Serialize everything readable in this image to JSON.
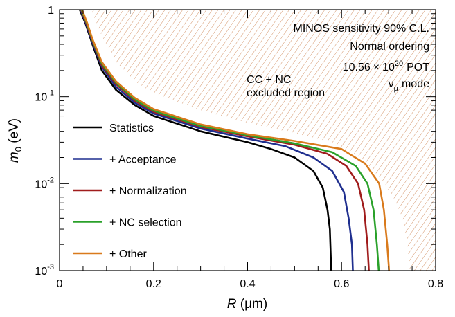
{
  "chart_data": {
    "type": "line",
    "x_scale": "linear",
    "y_scale": "log",
    "xlim": [
      0,
      0.8
    ],
    "ylim": [
      0.001,
      1
    ],
    "xlabel": {
      "var": "R",
      "unit": " (μm)"
    },
    "ylabel": {
      "var": "m",
      "sub": "0",
      "unit": " (eV)"
    },
    "x_ticks": [
      "0",
      "0.2",
      "0.4",
      "0.6",
      "0.8"
    ],
    "y_ticks": [
      {
        "value": 1,
        "base": "1",
        "exp": ""
      },
      {
        "value": 0.1,
        "base": "10",
        "exp": "-1"
      },
      {
        "value": 0.01,
        "base": "10",
        "exp": "-2"
      },
      {
        "value": 0.001,
        "base": "10",
        "exp": "-3"
      }
    ],
    "annotations": {
      "sensitivity": "MINOS sensitivity 90% C.L.",
      "ordering": "Normal ordering",
      "pot_mantissa": "10.56",
      "pot_times": "×",
      "pot_base": "10",
      "pot_exp": "20",
      "pot_unit": "POT",
      "mode_nu": "ν",
      "mode_sub": "μ",
      "mode_text": "mode",
      "region_line1": "CC + NC",
      "region_line2": "excluded region"
    },
    "excluded_region": {
      "color": "#d4956a",
      "boundary": [
        [
          0.067,
          1
        ],
        [
          0.09,
          0.5
        ],
        [
          0.12,
          0.25
        ],
        [
          0.16,
          0.15
        ],
        [
          0.2,
          0.11
        ],
        [
          0.3,
          0.07
        ],
        [
          0.4,
          0.05
        ],
        [
          0.5,
          0.038
        ],
        [
          0.58,
          0.03
        ],
        [
          0.64,
          0.02
        ],
        [
          0.68,
          0.012
        ],
        [
          0.71,
          0.007
        ],
        [
          0.73,
          0.004
        ],
        [
          0.74,
          0.002
        ],
        [
          0.745,
          0.001
        ]
      ]
    },
    "series": [
      {
        "name": "Statistics",
        "color": "#000000",
        "points": [
          [
            0.043,
            1
          ],
          [
            0.055,
            0.7
          ],
          [
            0.07,
            0.4
          ],
          [
            0.09,
            0.2
          ],
          [
            0.12,
            0.12
          ],
          [
            0.16,
            0.08
          ],
          [
            0.2,
            0.06
          ],
          [
            0.3,
            0.04
          ],
          [
            0.4,
            0.03
          ],
          [
            0.45,
            0.025
          ],
          [
            0.5,
            0.02
          ],
          [
            0.54,
            0.014
          ],
          [
            0.56,
            0.009
          ],
          [
            0.57,
            0.005
          ],
          [
            0.575,
            0.003
          ],
          [
            0.578,
            0.001
          ]
        ]
      },
      {
        "name": "+ Acceptance",
        "color": "#1f2f8f",
        "points": [
          [
            0.045,
            1
          ],
          [
            0.056,
            0.7
          ],
          [
            0.07,
            0.42
          ],
          [
            0.09,
            0.22
          ],
          [
            0.12,
            0.13
          ],
          [
            0.16,
            0.085
          ],
          [
            0.2,
            0.064
          ],
          [
            0.3,
            0.043
          ],
          [
            0.4,
            0.033
          ],
          [
            0.48,
            0.027
          ],
          [
            0.54,
            0.02
          ],
          [
            0.58,
            0.014
          ],
          [
            0.605,
            0.008
          ],
          [
            0.615,
            0.004
          ],
          [
            0.622,
            0.002
          ],
          [
            0.624,
            0.001
          ]
        ]
      },
      {
        "name": "+ Normalization",
        "color": "#a01c1c",
        "points": [
          [
            0.046,
            1
          ],
          [
            0.057,
            0.7
          ],
          [
            0.07,
            0.44
          ],
          [
            0.09,
            0.23
          ],
          [
            0.12,
            0.14
          ],
          [
            0.16,
            0.09
          ],
          [
            0.2,
            0.067
          ],
          [
            0.3,
            0.045
          ],
          [
            0.4,
            0.035
          ],
          [
            0.5,
            0.028
          ],
          [
            0.57,
            0.022
          ],
          [
            0.61,
            0.016
          ],
          [
            0.635,
            0.01
          ],
          [
            0.648,
            0.005
          ],
          [
            0.655,
            0.002
          ],
          [
            0.658,
            0.001
          ]
        ]
      },
      {
        "name": "+ NC selection",
        "color": "#2aa12a",
        "points": [
          [
            0.047,
            1
          ],
          [
            0.058,
            0.7
          ],
          [
            0.07,
            0.45
          ],
          [
            0.09,
            0.24
          ],
          [
            0.12,
            0.145
          ],
          [
            0.16,
            0.093
          ],
          [
            0.2,
            0.069
          ],
          [
            0.3,
            0.046
          ],
          [
            0.4,
            0.036
          ],
          [
            0.5,
            0.029
          ],
          [
            0.58,
            0.023
          ],
          [
            0.63,
            0.016
          ],
          [
            0.655,
            0.01
          ],
          [
            0.668,
            0.005
          ],
          [
            0.675,
            0.002
          ],
          [
            0.679,
            0.001
          ]
        ]
      },
      {
        "name": "+ Other",
        "color": "#d97a1c",
        "points": [
          [
            0.048,
            1
          ],
          [
            0.059,
            0.7
          ],
          [
            0.07,
            0.46
          ],
          [
            0.09,
            0.25
          ],
          [
            0.12,
            0.15
          ],
          [
            0.16,
            0.097
          ],
          [
            0.2,
            0.072
          ],
          [
            0.3,
            0.048
          ],
          [
            0.4,
            0.037
          ],
          [
            0.5,
            0.031
          ],
          [
            0.6,
            0.025
          ],
          [
            0.65,
            0.017
          ],
          [
            0.68,
            0.01
          ],
          [
            0.69,
            0.005
          ],
          [
            0.697,
            0.002
          ],
          [
            0.701,
            0.001
          ]
        ]
      }
    ],
    "legend_position": "left"
  }
}
